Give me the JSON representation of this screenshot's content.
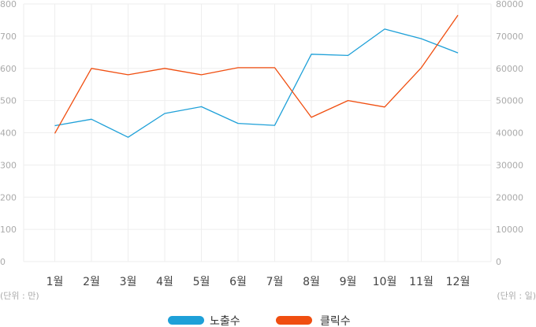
{
  "chart_data": {
    "type": "line",
    "categories": [
      "1월",
      "2월",
      "3월",
      "4월",
      "5월",
      "6월",
      "7월",
      "8월",
      "9월",
      "10월",
      "11월",
      "12월"
    ],
    "series": [
      {
        "name": "노출수",
        "axis": "left",
        "color": "#1ea0d8",
        "values": [
          422,
          442,
          386,
          460,
          481,
          429,
          423,
          644,
          640,
          722,
          692,
          648
        ]
      },
      {
        "name": "클릭수",
        "axis": "right",
        "color": "#f04e10",
        "values": [
          39800,
          60000,
          58000,
          60000,
          58000,
          60200,
          60200,
          44800,
          50000,
          48000,
          60200,
          76500
        ]
      }
    ],
    "y_left": {
      "min": 0,
      "max": 800,
      "ticks": [
        0,
        100,
        200,
        300,
        400,
        500,
        600,
        700,
        800
      ],
      "unit_label": "(단위 : 만)"
    },
    "y_right": {
      "min": 0,
      "max": 80000,
      "ticks": [
        0,
        10000,
        20000,
        30000,
        40000,
        50000,
        60000,
        70000,
        80000
      ],
      "unit_label": "(단위 : 일)"
    },
    "grid": true,
    "legend": "bottom-center"
  }
}
